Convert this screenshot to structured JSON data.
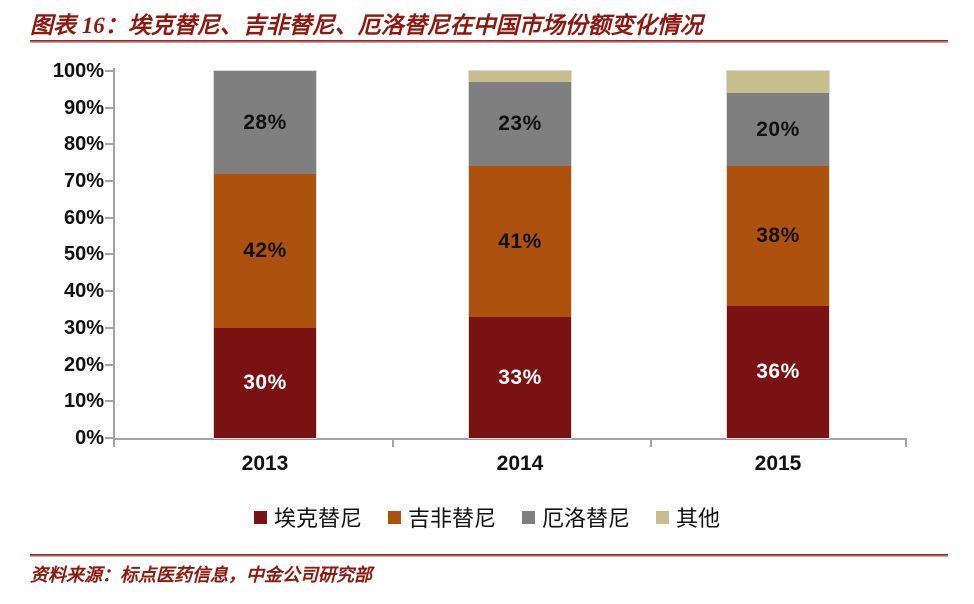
{
  "figure": {
    "title": "图表 16：埃克替尼、吉非替尼、厄洛替尼在中国市场份额变化情况",
    "source": "资料来源：标点医药信息，中金公司研究部"
  },
  "colors": {
    "accent_maroon": "#8C1A10",
    "rule_maroon": "#8E2B28",
    "axis_gray": "#A3A3A3",
    "label_dark": "#111111",
    "label_light": "#FFFFFF"
  },
  "chart_data": {
    "type": "bar",
    "stacked": true,
    "title": "埃克替尼、吉非替尼、厄洛替尼在中国市场份额变化情况",
    "categories": [
      "2013",
      "2014",
      "2015"
    ],
    "series": [
      {
        "name": "埃克替尼",
        "color": "#7A1113",
        "values": [
          30,
          33,
          36
        ],
        "labels": [
          "30%",
          "33%",
          "36%"
        ],
        "label_color": "#FFFFFF"
      },
      {
        "name": "吉非替尼",
        "color": "#AC520E",
        "values": [
          42,
          41,
          38
        ],
        "labels": [
          "42%",
          "41%",
          "38%"
        ],
        "label_color": "#111111"
      },
      {
        "name": "厄洛替尼",
        "color": "#7F7F7F",
        "values": [
          28,
          23,
          20
        ],
        "labels": [
          "28%",
          "23%",
          "20%"
        ],
        "label_color": "#111111"
      },
      {
        "name": "其他",
        "color": "#C6BE8D",
        "values": [
          0,
          3,
          6
        ],
        "labels": [
          "",
          "",
          ""
        ],
        "label_color": "#111111"
      }
    ],
    "y_ticks": [
      "0%",
      "10%",
      "20%",
      "30%",
      "40%",
      "50%",
      "60%",
      "70%",
      "80%",
      "90%",
      "100%"
    ],
    "ylim": [
      0,
      100
    ],
    "grid": false,
    "legend_position": "bottom"
  }
}
